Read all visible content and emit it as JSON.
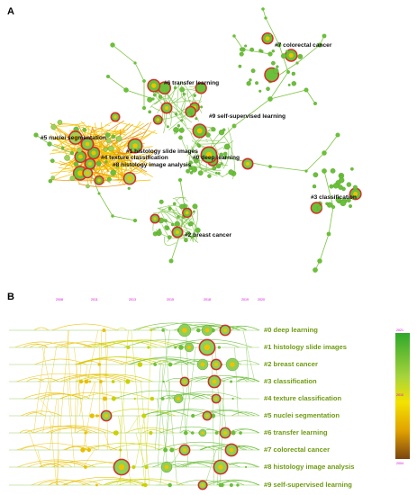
{
  "panel_a": {
    "letter": "A",
    "clusters": [
      {
        "label": "#7 colorectal cancer"
      },
      {
        "label": "#6 transfer learning"
      },
      {
        "label": "#9 self-supervised learning"
      },
      {
        "label": "#5 nuclei segmentation"
      },
      {
        "label": "#1 histology slide images"
      },
      {
        "label": "#4 texture classification"
      },
      {
        "label": "#0 deep learning"
      },
      {
        "label": "#8 histology image analysis"
      },
      {
        "label": "#3 classification"
      },
      {
        "label": "#2 breast cancer"
      }
    ]
  },
  "panel_b": {
    "letter": "B",
    "year_ticks": [
      "2008",
      "2011",
      "2013",
      "2015",
      "2018",
      "2019",
      "2020"
    ],
    "clusters": [
      {
        "label": "#0 deep learning"
      },
      {
        "label": "#1 histology slide images"
      },
      {
        "label": "#2 breast cancer"
      },
      {
        "label": "#3 classification"
      },
      {
        "label": "#4 texture classification"
      },
      {
        "label": "#5 nuclei segmentation"
      },
      {
        "label": "#6 transfer learning"
      },
      {
        "label": "#7 colorectal cancer"
      },
      {
        "label": "#8 histology image analysis"
      },
      {
        "label": "#9 self-supervised learning"
      }
    ],
    "legend": {
      "top": "2021",
      "middle": "2010",
      "bottom": "2004"
    }
  },
  "colors": {
    "recent": "#5fbf2e",
    "older": "#f0c000",
    "oldest": "#8a4a10",
    "burst": "#e8202a",
    "label_b": "#6e9a12",
    "year_tick": "#d400d4"
  }
}
